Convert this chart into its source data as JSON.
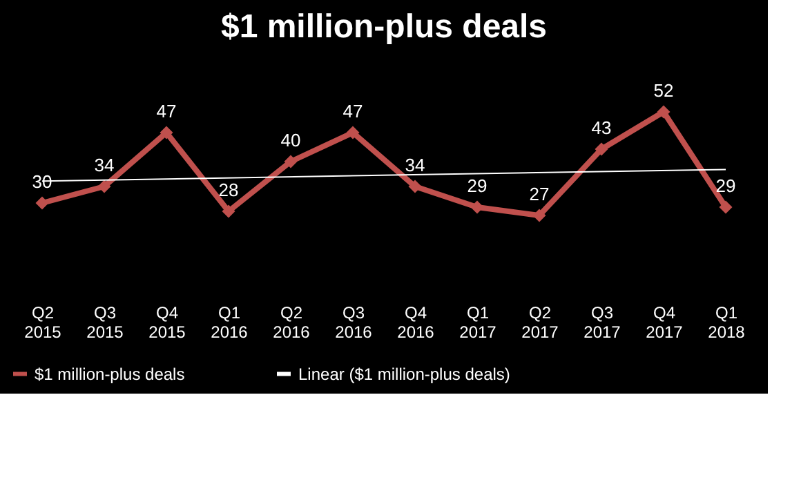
{
  "chart_data": {
    "type": "line",
    "title": "$1 million-plus deals",
    "categories": [
      "Q2 2015",
      "Q3 2015",
      "Q4 2015",
      "Q1 2016",
      "Q2 2016",
      "Q3 2016",
      "Q4 2016",
      "Q1 2017",
      "Q2 2017",
      "Q3 2017",
      "Q4 2017",
      "Q1 2018"
    ],
    "series": [
      {
        "name": "$1 million-plus deals",
        "color": "#c0504d",
        "marker": "diamond",
        "values": [
          30,
          34,
          47,
          28,
          40,
          47,
          34,
          29,
          27,
          43,
          52,
          29
        ],
        "value_labels": [
          "30",
          "34",
          "47",
          "28",
          "40",
          "47",
          "34",
          "29",
          "27",
          "43",
          "52",
          "29"
        ]
      },
      {
        "name": "Linear ($1 million-plus deals)",
        "type": "line",
        "color": "#ffffff",
        "marker": "none",
        "x": [
          "Q2 2015",
          "Q1 2018"
        ],
        "values": [
          35.3,
          38.1
        ]
      }
    ],
    "tick_labels": "x",
    "grid": false,
    "legend": "bottom"
  }
}
